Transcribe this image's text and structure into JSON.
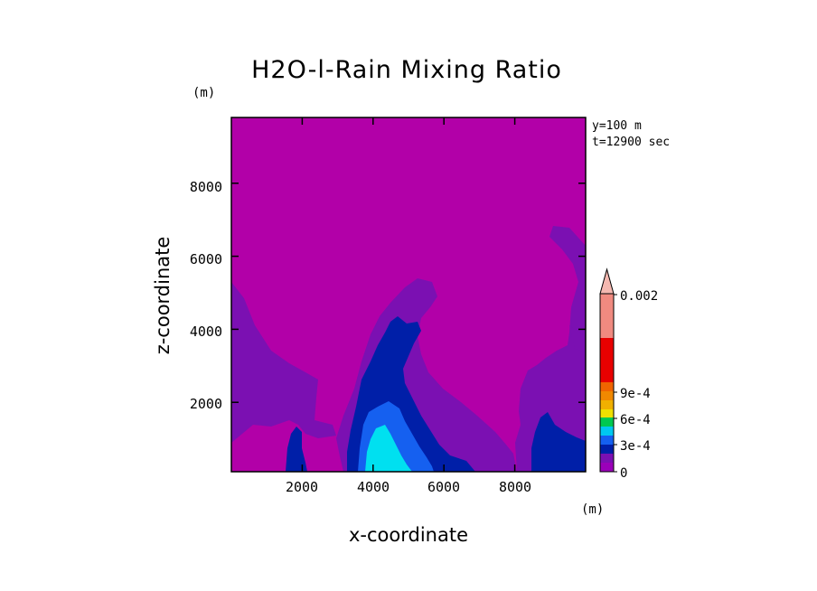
{
  "chart_data": {
    "type": "contour",
    "title": "H2O-l-Rain Mixing Ratio",
    "xlabel": "x-coordinate",
    "ylabel": "z-coordinate",
    "x_unit": "(m)",
    "y_unit": "(m)",
    "xlim": [
      0,
      10000
    ],
    "ylim": [
      100,
      9800
    ],
    "x_ticks": [
      "2000",
      "4000",
      "6000",
      "8000"
    ],
    "y_ticks": [
      "2000",
      "4000",
      "6000",
      "8000"
    ],
    "info": [
      "y=100 m",
      "t=12900 sec"
    ],
    "colorbar": {
      "labels": [
        "0.002",
        "9e-4",
        "6e-4",
        "3e-4",
        "0"
      ],
      "levels": [
        0,
        0.0001,
        0.0002,
        0.0003,
        0.0004,
        0.0005,
        0.0006,
        0.0007,
        0.0008,
        0.0009,
        0.001,
        0.0015,
        0.002
      ],
      "colors": [
        "#9b00b9",
        "#7b10b2",
        "#001fa8",
        "#1560f0",
        "#00c8f0",
        "#00c850",
        "#f0e000",
        "#f0b000",
        "#f08800",
        "#f06400",
        "#e80000",
        "#f08a80"
      ],
      "extend_color": "#f4b8b0",
      "label_levels": [
        0.002,
        0.0009,
        0.0006,
        0.0003,
        0
      ]
    },
    "background_color": "#b200a8"
  }
}
